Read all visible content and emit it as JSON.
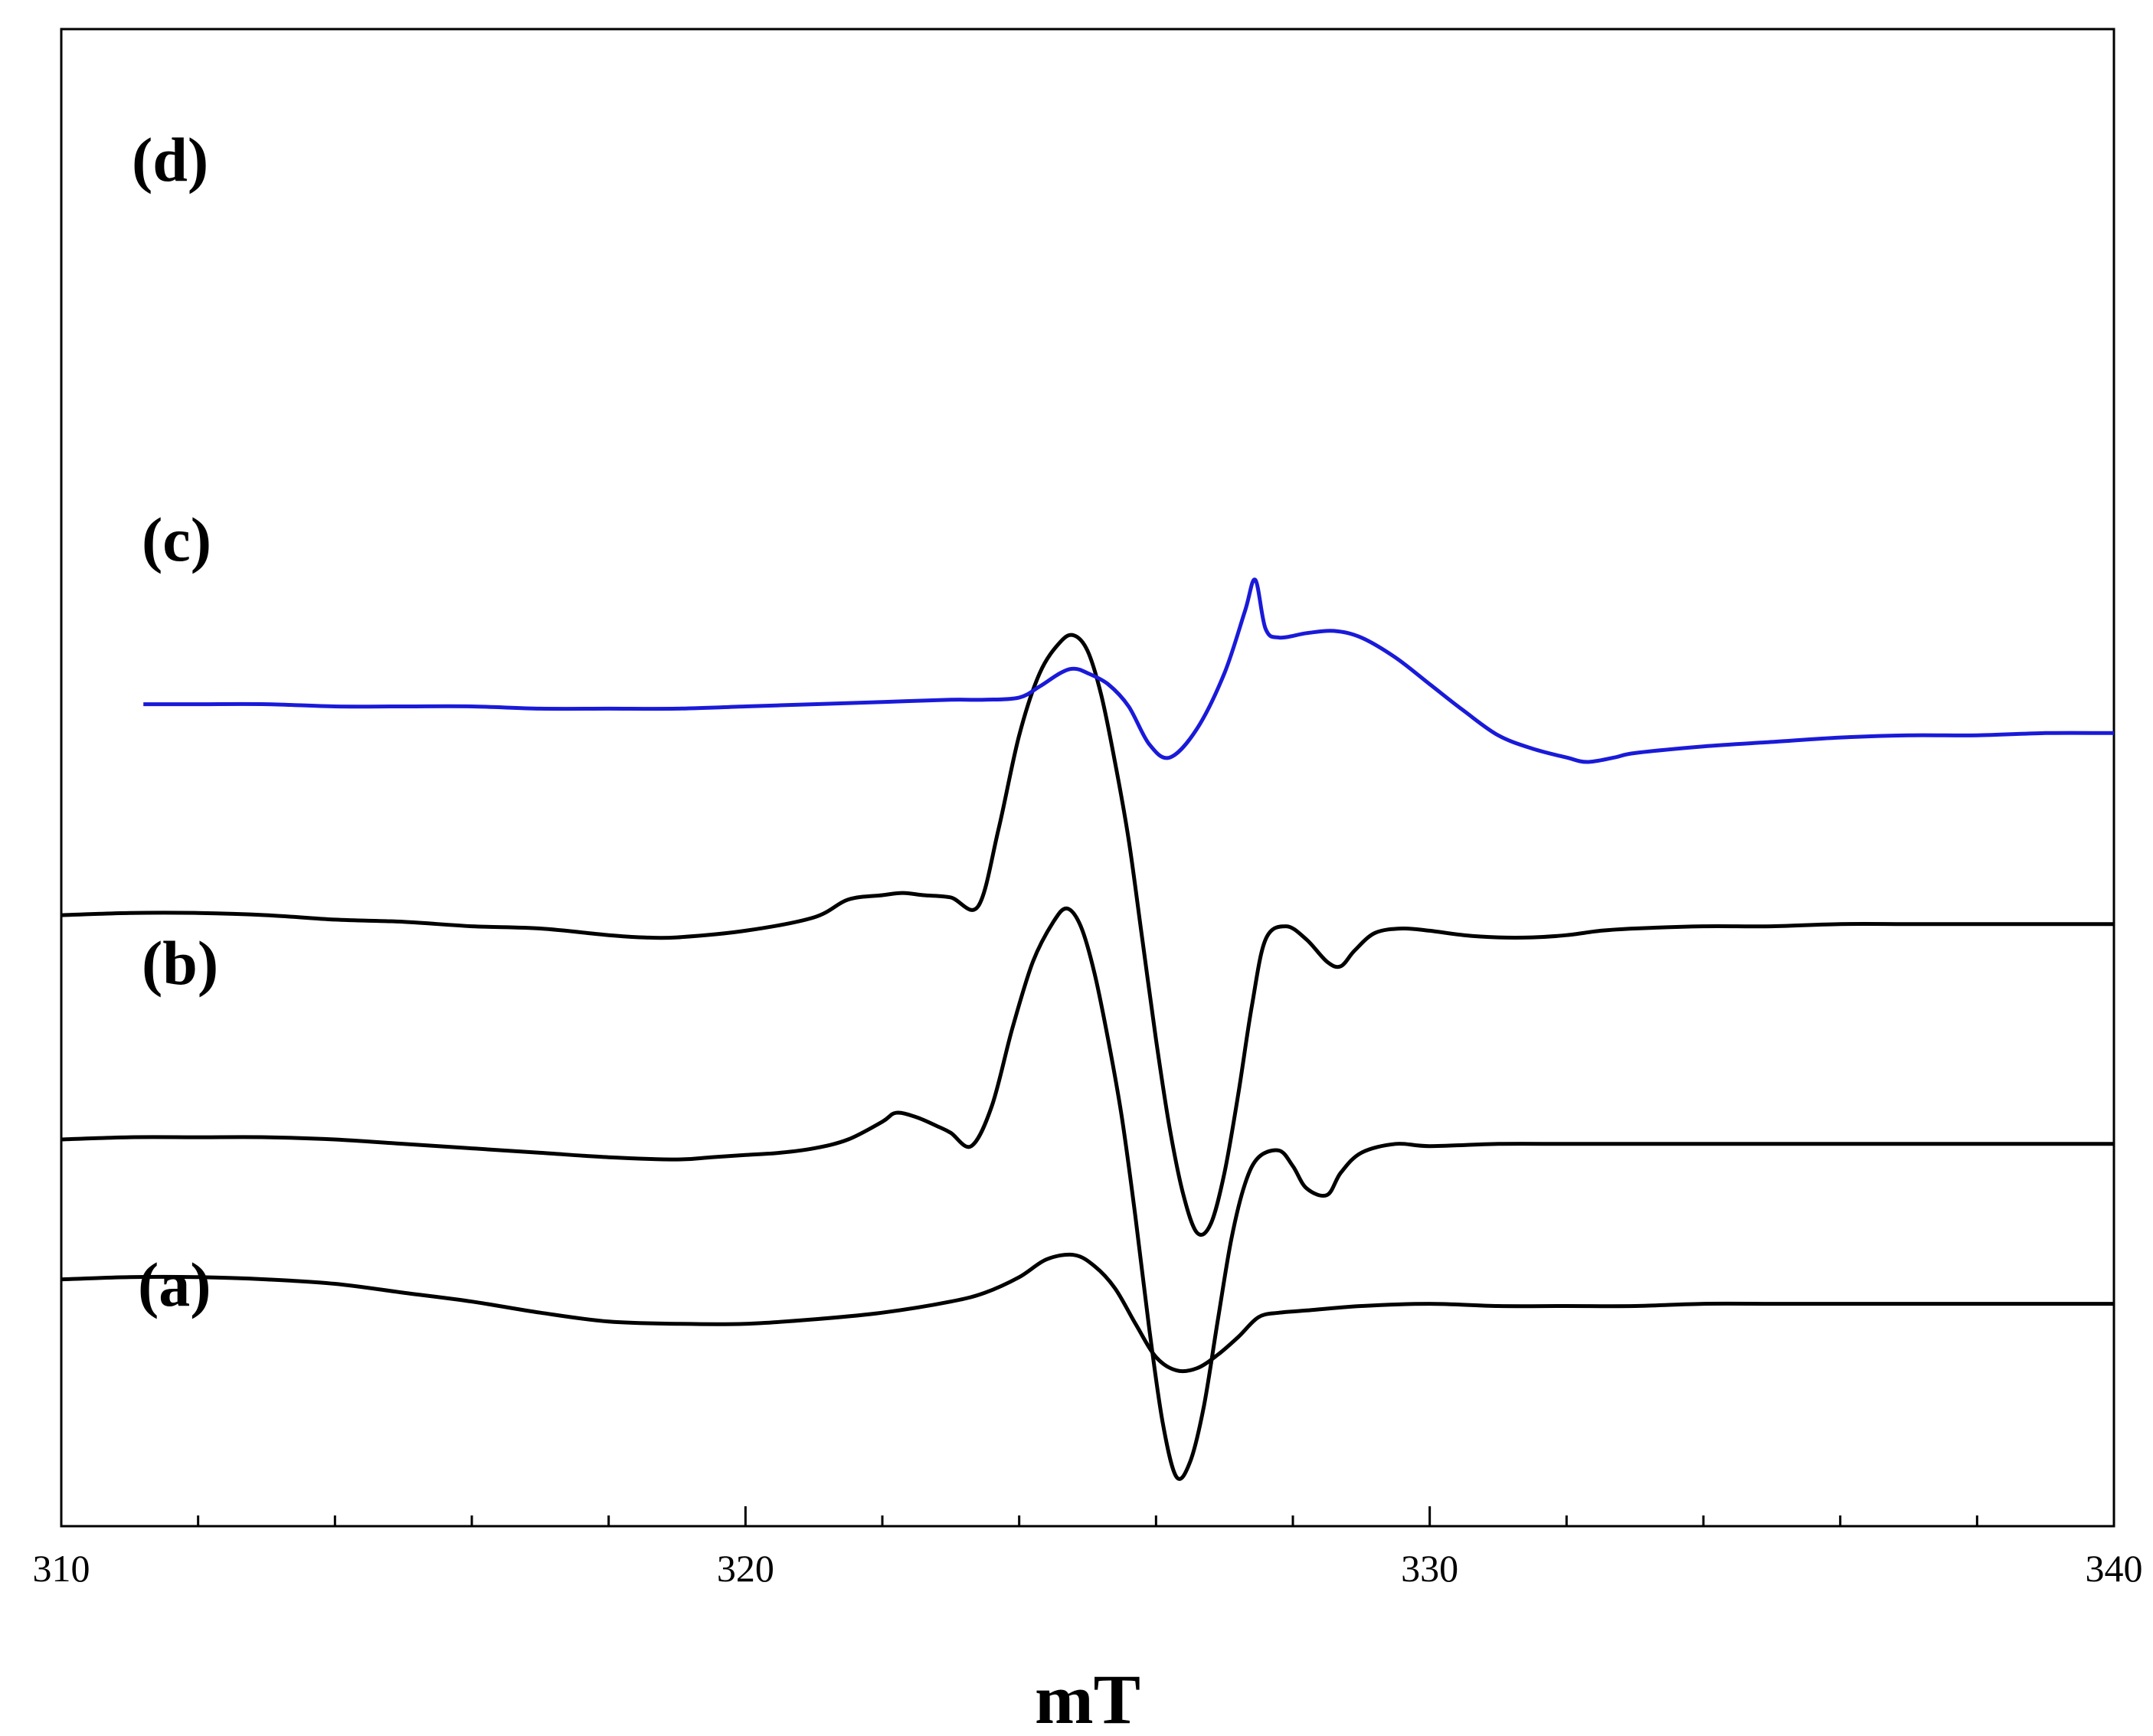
{
  "chart_data": {
    "type": "line",
    "xlabel": "mT",
    "ylabel": "",
    "xlim": [
      310,
      340
    ],
    "x_ticks": [
      310,
      320,
      330,
      340
    ],
    "minor_tick_step": 2,
    "y_tick_labels": false,
    "grid": false,
    "legend": "none",
    "series": [
      {
        "label": "(a)",
        "color": "#000000",
        "offset": 0.0,
        "x": [
          310.0,
          311.0,
          312.0,
          313.0,
          314.0,
          315.0,
          316.0,
          317.0,
          318.0,
          319.0,
          320.0,
          321.0,
          322.0,
          323.0,
          323.5,
          324.0,
          324.4,
          324.8,
          325.1,
          325.4,
          325.7,
          326.0,
          326.3,
          326.6,
          326.9,
          327.2,
          327.5,
          327.8,
          328.2,
          329.0,
          330.0,
          331.0,
          332.0,
          333.0,
          334.0,
          335.0,
          336.0,
          337.0,
          338.0,
          339.0,
          340.0
        ],
        "y": [
          0.37,
          0.38,
          0.38,
          0.37,
          0.35,
          0.31,
          0.27,
          0.22,
          0.18,
          0.17,
          0.17,
          0.19,
          0.22,
          0.27,
          0.31,
          0.38,
          0.46,
          0.48,
          0.43,
          0.33,
          0.17,
          0.02,
          -0.04,
          -0.03,
          0.03,
          0.11,
          0.2,
          0.22,
          0.23,
          0.25,
          0.26,
          0.25,
          0.25,
          0.25,
          0.26,
          0.26,
          0.26,
          0.26,
          0.26,
          0.26,
          0.26
        ]
      },
      {
        "label": "(b)",
        "color": "#000000",
        "offset": 1.0,
        "x": [
          310.0,
          311.0,
          312.0,
          313.0,
          314.0,
          315.0,
          316.0,
          317.0,
          318.0,
          319.0,
          319.5,
          320.0,
          320.5,
          321.0,
          321.5,
          322.0,
          322.2,
          322.5,
          322.8,
          323.0,
          323.3,
          323.6,
          323.9,
          324.2,
          324.5,
          324.7,
          324.9,
          325.1,
          325.3,
          325.5,
          325.7,
          325.9,
          326.1,
          326.3,
          326.5,
          326.7,
          326.9,
          327.1,
          327.3,
          327.5,
          327.8,
          328.0,
          328.2,
          328.5,
          328.7,
          329.0,
          329.5,
          330.0,
          331.0,
          332.0,
          333.0,
          334.0,
          335.0,
          336.0,
          337.0,
          338.0,
          339.0,
          340.0
        ],
        "y": [
          0.0,
          0.01,
          0.01,
          0.01,
          0.0,
          -0.02,
          -0.04,
          -0.06,
          -0.08,
          -0.09,
          -0.08,
          -0.07,
          -0.06,
          -0.04,
          0.0,
          0.08,
          0.12,
          0.1,
          0.06,
          0.03,
          -0.03,
          0.15,
          0.5,
          0.8,
          0.98,
          1.04,
          0.96,
          0.75,
          0.45,
          0.1,
          -0.35,
          -0.85,
          -1.28,
          -1.52,
          -1.45,
          -1.2,
          -0.82,
          -0.45,
          -0.2,
          -0.08,
          -0.05,
          -0.12,
          -0.22,
          -0.25,
          -0.15,
          -0.06,
          -0.02,
          -0.03,
          -0.02,
          -0.02,
          -0.02,
          -0.02,
          -0.02,
          -0.02,
          -0.02,
          -0.02,
          -0.02,
          -0.02
        ]
      },
      {
        "label": "(c)",
        "color": "#000000",
        "offset": 2.0,
        "x": [
          310.0,
          311.0,
          312.0,
          313.0,
          314.0,
          315.0,
          316.0,
          317.0,
          318.0,
          318.5,
          319.0,
          320.0,
          321.0,
          321.5,
          322.0,
          322.3,
          322.6,
          323.0,
          323.4,
          323.7,
          324.0,
          324.3,
          324.6,
          324.8,
          325.0,
          325.2,
          325.4,
          325.6,
          325.8,
          326.0,
          326.2,
          326.4,
          326.6,
          326.8,
          327.0,
          327.2,
          327.4,
          327.6,
          327.9,
          328.2,
          328.5,
          328.7,
          328.9,
          329.2,
          329.6,
          330.0,
          330.5,
          331.0,
          331.5,
          332.0,
          332.5,
          333.0,
          334.0,
          335.0,
          336.0,
          337.0,
          338.0,
          339.0,
          340.0
        ],
        "y": [
          0.01,
          0.02,
          0.02,
          0.01,
          -0.01,
          -0.02,
          -0.04,
          -0.05,
          -0.08,
          -0.09,
          -0.09,
          -0.06,
          0.0,
          0.08,
          0.1,
          0.11,
          0.1,
          0.09,
          0.05,
          0.4,
          0.82,
          1.1,
          1.24,
          1.27,
          1.2,
          1.0,
          0.7,
          0.35,
          -0.1,
          -0.55,
          -0.95,
          -1.25,
          -1.42,
          -1.38,
          -1.15,
          -0.8,
          -0.4,
          -0.1,
          -0.04,
          -0.1,
          -0.2,
          -0.22,
          -0.15,
          -0.07,
          -0.05,
          -0.06,
          -0.08,
          -0.09,
          -0.09,
          -0.08,
          -0.06,
          -0.05,
          -0.04,
          -0.04,
          -0.03,
          -0.03,
          -0.03,
          -0.03,
          -0.03
        ]
      },
      {
        "label": "(d)",
        "color": "#1a1ad9",
        "offset": 2.9,
        "x": [
          311.2,
          312.0,
          313.0,
          314.0,
          315.0,
          316.0,
          317.0,
          318.0,
          319.0,
          320.0,
          321.0,
          322.0,
          323.0,
          323.5,
          324.0,
          324.3,
          324.6,
          324.8,
          325.0,
          325.3,
          325.6,
          325.9,
          326.2,
          326.6,
          327.0,
          327.3,
          327.45,
          327.6,
          327.8,
          328.2,
          328.6,
          329.0,
          329.5,
          330.0,
          330.5,
          331.0,
          331.5,
          332.0,
          332.3,
          332.7,
          333.0,
          334.0,
          335.0,
          336.0,
          337.0,
          338.0,
          339.0,
          340.0
        ],
        "y": [
          0.06,
          0.06,
          0.06,
          0.05,
          0.05,
          0.05,
          0.04,
          0.04,
          0.04,
          0.05,
          0.06,
          0.07,
          0.08,
          0.08,
          0.09,
          0.14,
          0.2,
          0.22,
          0.2,
          0.15,
          0.05,
          -0.12,
          -0.18,
          -0.05,
          0.2,
          0.48,
          0.62,
          0.4,
          0.36,
          0.38,
          0.39,
          0.36,
          0.27,
          0.15,
          0.03,
          -0.08,
          -0.14,
          -0.18,
          -0.2,
          -0.18,
          -0.16,
          -0.13,
          -0.11,
          -0.09,
          -0.08,
          -0.08,
          -0.07,
          -0.07
        ]
      }
    ]
  }
}
